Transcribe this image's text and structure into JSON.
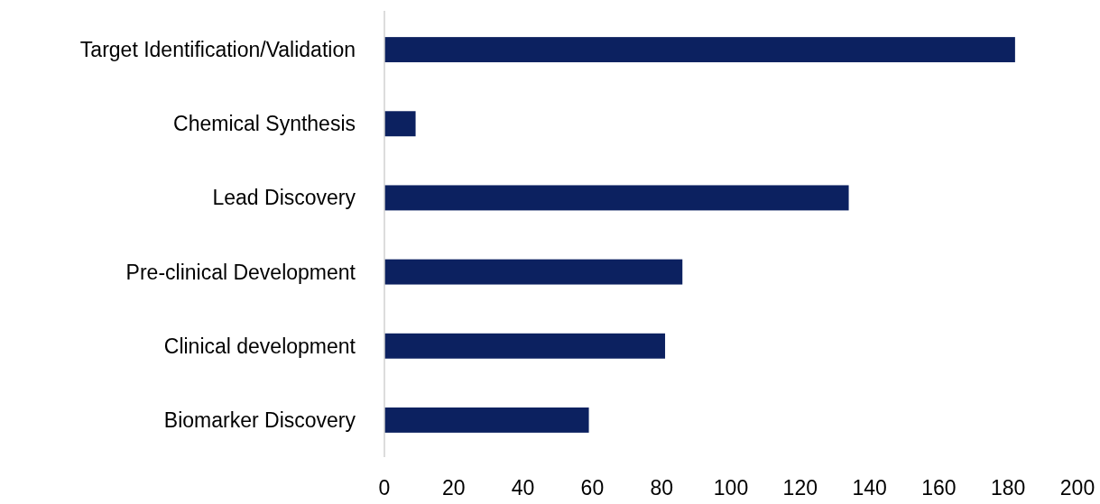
{
  "chart_data": {
    "type": "bar",
    "orientation": "horizontal",
    "categories": [
      "Target Identification/Validation",
      "Chemical Synthesis",
      "Lead Discovery",
      "Pre-clinical Development",
      "Clinical development",
      "Biomarker Discovery"
    ],
    "values": [
      182,
      9,
      134,
      86,
      81,
      59
    ],
    "color": "#0c2160",
    "xlim": [
      0,
      200
    ],
    "xticks": [
      0,
      20,
      40,
      60,
      80,
      100,
      120,
      140,
      160,
      180,
      200
    ],
    "grid": false
  }
}
